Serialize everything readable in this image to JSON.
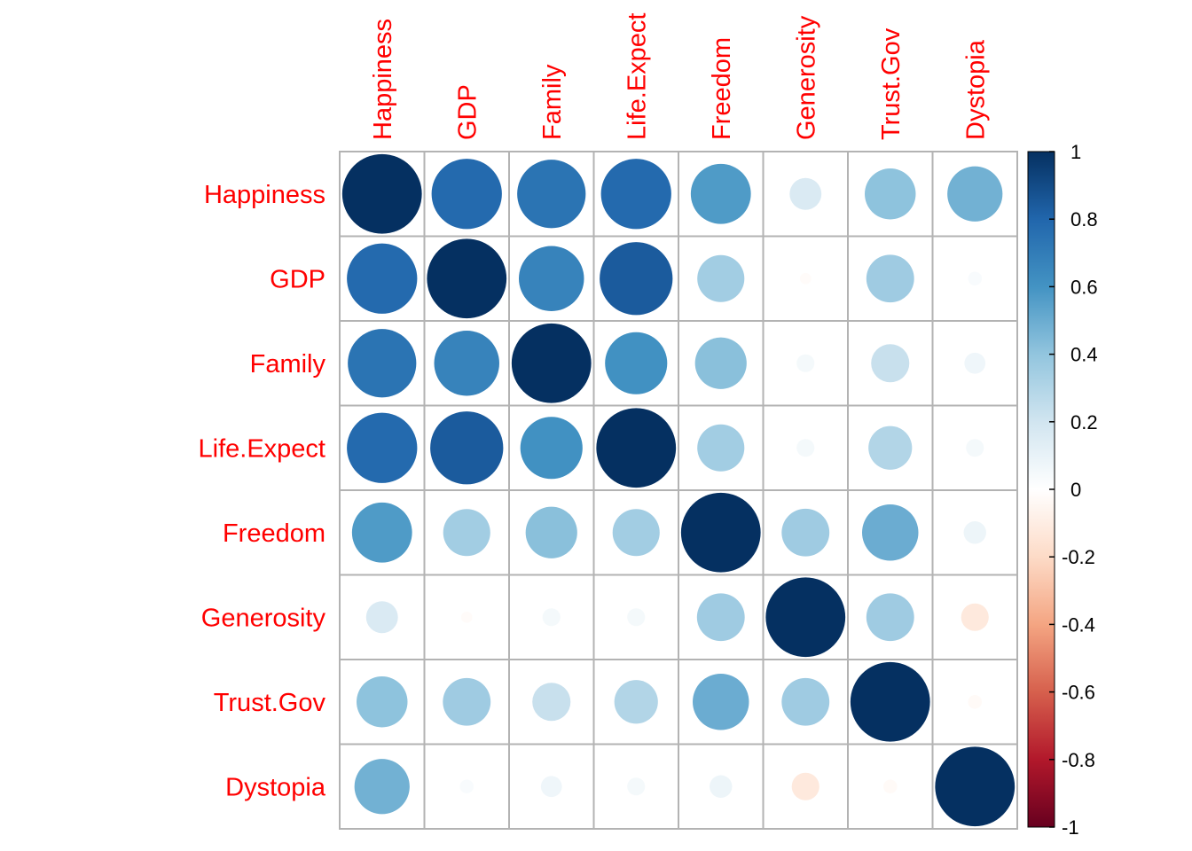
{
  "chart_data": {
    "type": "heatmap",
    "style": "correlation circles",
    "variables": [
      "Happiness",
      "GDP",
      "Family",
      "Life.Expect",
      "Freedom",
      "Generosity",
      "Trust.Gov",
      "Dystopia"
    ],
    "matrix": [
      [
        1.0,
        0.78,
        0.74,
        0.78,
        0.57,
        0.16,
        0.41,
        0.48
      ],
      [
        0.78,
        1.0,
        0.67,
        0.84,
        0.35,
        -0.02,
        0.36,
        0.03
      ],
      [
        0.74,
        0.67,
        1.0,
        0.61,
        0.42,
        0.05,
        0.23,
        0.07
      ],
      [
        0.78,
        0.84,
        0.61,
        1.0,
        0.35,
        0.05,
        0.3,
        0.05
      ],
      [
        0.57,
        0.35,
        0.42,
        0.35,
        1.0,
        0.36,
        0.5,
        0.08
      ],
      [
        0.16,
        -0.02,
        0.05,
        0.05,
        0.36,
        1.0,
        0.36,
        -0.12
      ],
      [
        0.41,
        0.36,
        0.23,
        0.3,
        0.5,
        0.36,
        1.0,
        -0.03
      ],
      [
        0.48,
        0.03,
        0.07,
        0.05,
        0.08,
        -0.12,
        -0.03,
        1.0
      ]
    ],
    "colorbar": {
      "ticks": [
        "1",
        "0.8",
        "0.6",
        "0.4",
        "0.2",
        "0",
        "-0.2",
        "-0.4",
        "-0.6",
        "-0.8",
        "-1"
      ],
      "range": [
        -1,
        1
      ]
    },
    "colors": {
      "label": "#ff0000",
      "grid": "#b3b3b3",
      "scale": [
        "#67001F",
        "#B2182B",
        "#D6604D",
        "#F4A582",
        "#FDDBC7",
        "#FFFFFF",
        "#D1E5F0",
        "#92C5DE",
        "#4393C3",
        "#2166AC",
        "#053061"
      ]
    },
    "legend": "right"
  }
}
